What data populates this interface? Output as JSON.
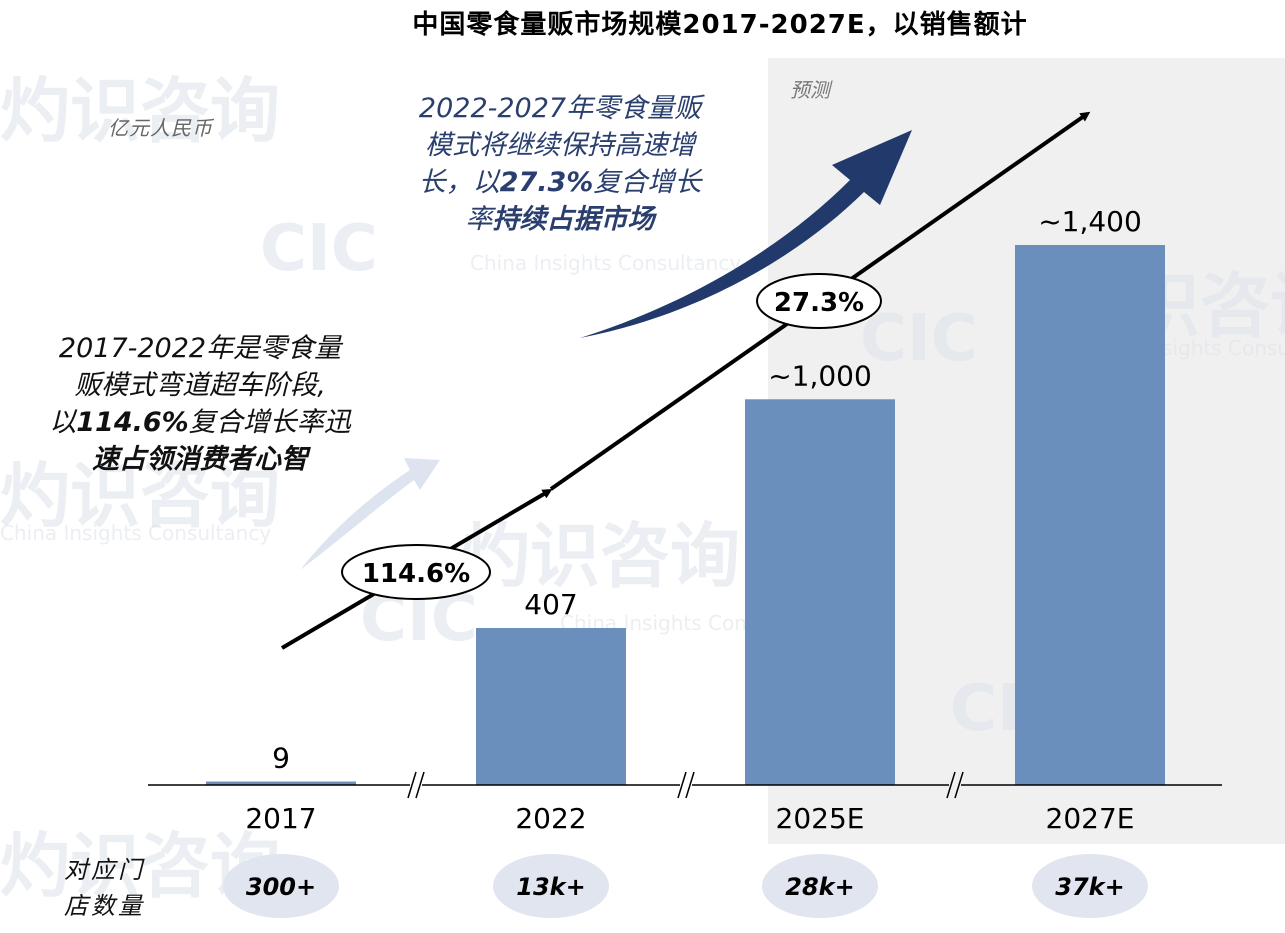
{
  "title": "中国零食量贩市场规模2017-2027E，以销售额计",
  "unit_label": "亿元人民币",
  "forecast_label": "预测",
  "callout_left": {
    "line1": "2017-2022年是零食量",
    "line2": "贩模式弯道超车阶段,",
    "line3_prefix": "以",
    "line3_bold": "114.6%",
    "line3_suffix": "复合增长率迅",
    "line4": "速占领消费者心智"
  },
  "callout_right": {
    "line1": "2022-2027年零食量贩",
    "line2": "模式将继续保持高速增",
    "line3_prefix": "长，以",
    "line3_bold": "27.3%",
    "line3_suffix": "复合增长",
    "line4_prefix": "率",
    "line4_bold": "持续占据市场"
  },
  "cagr_labels": [
    "114.6%",
    "27.3%"
  ],
  "store_count_label": [
    "对应门",
    "店数量"
  ],
  "store_counts": [
    "300+",
    "13k+",
    "28k+",
    "37k+"
  ],
  "watermark": {
    "brand_cn": "灼识咨询",
    "brand_short": "CIC",
    "brand_en": "China Insights Consultancy"
  },
  "colors": {
    "bar": "#6a8fbd",
    "arrow_dark": "#213a6b",
    "arrow_light": "#dde4ef",
    "forecast_bg": "#f0f0f0",
    "pill": "#e1e5ef"
  },
  "chart_data": {
    "type": "bar",
    "title": "中国零食量贩市场规模2017-2027E，以销售额计",
    "ylabel": "亿元人民币",
    "categories": [
      "2017",
      "2022",
      "2025E",
      "2027E"
    ],
    "values": [
      9,
      407,
      1000,
      1400
    ],
    "data_labels": [
      "9",
      "407",
      "~1,000",
      "~1,400"
    ],
    "ylim": [
      0,
      1400
    ],
    "axis_breaks": [
      "2017-2022",
      "2022-2025E",
      "2025E-2027E"
    ],
    "forecast_categories": [
      "2025E",
      "2027E"
    ],
    "grid": false
  }
}
